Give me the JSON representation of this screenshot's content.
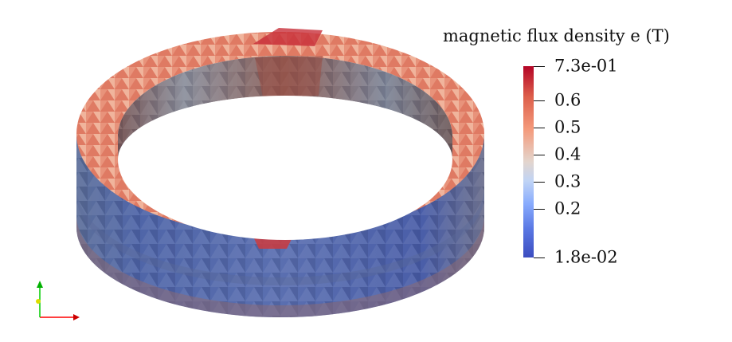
{
  "legend": {
    "title": "magnetic flux density e (T)",
    "max_label": "7.3e-01",
    "min_label": "1.8e-02",
    "ticks": [
      "0.6",
      "0.5",
      "0.4",
      "0.3",
      "0.2"
    ],
    "range": [
      0.018,
      0.73
    ],
    "colormap": [
      "#3b4cc0",
      "#88abfd",
      "#e3d5cd",
      "#f49a7b",
      "#b40426"
    ]
  },
  "scene": {
    "object": "ring-mesh",
    "axes_colors": {
      "x": "#ff0000",
      "y": "#ffff00",
      "z": "#00cc00"
    }
  }
}
